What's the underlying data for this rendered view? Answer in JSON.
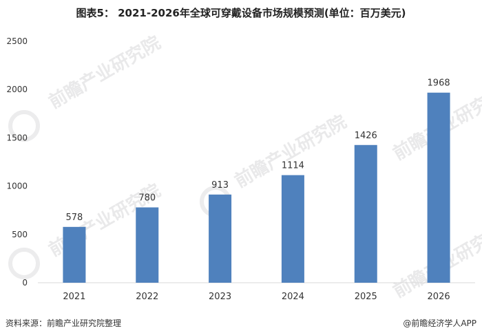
{
  "title": "图表5： 2021-2026年全球可穿戴设备市场规模预测(单位：百万美元)",
  "footer": {
    "source": "资料来源：前瞻产业研究院整理",
    "brand": "@前瞻经济学人APP"
  },
  "watermark": "前瞻产业研究院",
  "colors": {
    "bar": "#4f81bd",
    "axis": "#d9d9d9",
    "text": "#333333"
  },
  "chart_data": {
    "type": "bar",
    "title": "图表5： 2021-2026年全球可穿戴设备市场规模预测(单位：百万美元)",
    "categories": [
      "2021",
      "2022",
      "2023",
      "2024",
      "2025",
      "2026"
    ],
    "values": [
      578,
      780,
      913,
      1114,
      1426,
      1968
    ],
    "ylim": [
      0,
      2500
    ],
    "yticks": [
      0,
      500,
      1000,
      1500,
      2000,
      2500
    ],
    "grid": false,
    "legend": "none"
  }
}
